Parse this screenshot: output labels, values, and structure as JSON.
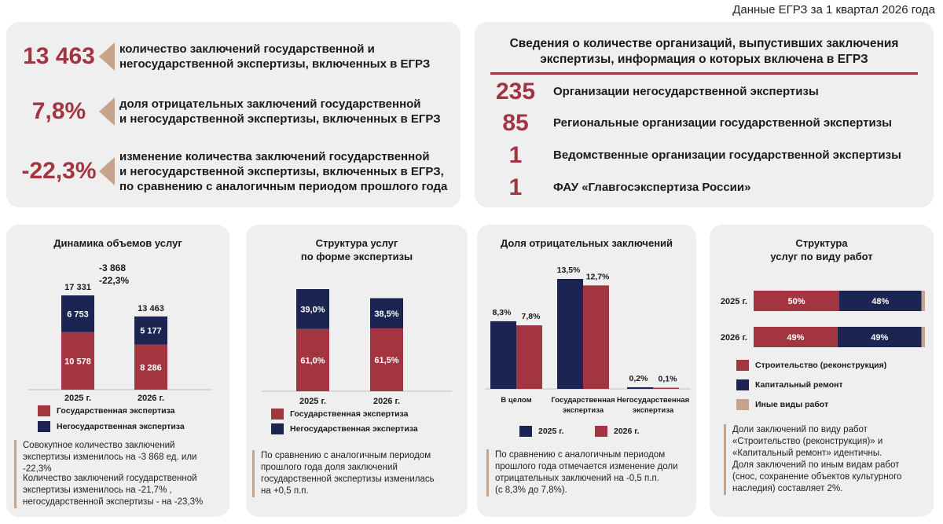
{
  "header": {
    "note": "Данные ЕГРЗ за 1 квартал 2026 года"
  },
  "colors": {
    "accent": "#a33540",
    "navy": "#1c2452",
    "tan": "#c6a48c",
    "panel": "#efefef"
  },
  "kpis": [
    {
      "value": "13 463",
      "text": "количество заключений государственной и\nнегосударственной экспертизы, включенных в ЕГРЗ"
    },
    {
      "value": "7,8%",
      "text": "доля отрицательных заключений государственной\nи негосударственной экспертизы, включенных в ЕГРЗ"
    },
    {
      "value": "-22,3%",
      "text": "изменение количества заключений государственной\nи негосударственной экспертизы, включенных в ЕГРЗ,\nпо сравнению с аналогичным периодом прошлого года"
    }
  ],
  "organizations": {
    "title": "Сведения о количестве организаций, выпустивших заключения\nэкспертизы, информация о которых включена в ЕГРЗ",
    "items": [
      {
        "count": "235",
        "label": "Организации негосударственной экспертизы"
      },
      {
        "count": "85",
        "label": "Региональные организации государственной экспертизы"
      },
      {
        "count": "1",
        "label": "Ведомственные организации государственной экспертизы"
      },
      {
        "count": "1",
        "label": "ФАУ «Главгосэкспертиза России»"
      }
    ]
  },
  "chart_data": [
    {
      "type": "bar",
      "stacked": true,
      "title": "Динамика объемов услуг",
      "categories": [
        "2025 г.",
        "2026 г."
      ],
      "series": [
        {
          "name": "Государственная экспертиза",
          "values": [
            10578,
            8286
          ],
          "labels": [
            "10 578",
            "8 286"
          ]
        },
        {
          "name": "Негосударственная экспертиза",
          "values": [
            6753,
            5177
          ],
          "labels": [
            "6 753",
            "5 177"
          ]
        }
      ],
      "totals": [
        "17 331",
        "13 463"
      ],
      "annotation": {
        "delta": "-3 868",
        "percent": "-22,3%"
      },
      "note1": "Совокупное количество заключений\nэкспертизы изменилось на -3 868 ед. или -22,3%",
      "note2": "Количество заключений государственной\nэкспертизы изменилось на -21,7% ,\nнегосударственной экспертизы - на -23,3%"
    },
    {
      "type": "bar",
      "stacked": true,
      "title": "Структура услуг\nпо форме экспертизы",
      "categories": [
        "2025 г.",
        "2026 г."
      ],
      "series": [
        {
          "name": "Государственная экспертиза",
          "values": [
            61.0,
            61.5
          ],
          "labels": [
            "61,0%",
            "61,5%"
          ]
        },
        {
          "name": "Негосударственная экспертиза",
          "values": [
            39.0,
            38.5
          ],
          "labels": [
            "39,0%",
            "38,5%"
          ]
        }
      ],
      "note": "По сравнению с аналогичным периодом\nпрошлого года доля заключений\nгосударственной экспертизы изменилась\nна +0,5 п.п."
    },
    {
      "type": "bar",
      "title": "Доля отрицательных заключений",
      "categories": [
        "В целом",
        "Государственная\nэкспертиза",
        "Негосударственная\nэкспертиза"
      ],
      "series": [
        {
          "name": "2025 г.",
          "values": [
            8.3,
            13.5,
            0.2
          ],
          "labels": [
            "8,3%",
            "13,5%",
            "0,2%"
          ]
        },
        {
          "name": "2026 г.",
          "values": [
            7.8,
            12.7,
            0.1
          ],
          "labels": [
            "7,8%",
            "12,7%",
            "0,1%"
          ]
        }
      ],
      "note": "По сравнению с аналогичным периодом\nпрошлого года отмечается изменение доли\nотрицательных заключений на -0,5 п.п.\n(с 8,3% до 7,8%)."
    },
    {
      "type": "bar",
      "orientation": "horizontal",
      "stacked": true,
      "title": "Структура\nуслуг по виду работ",
      "categories": [
        "2025 г.",
        "2026 г."
      ],
      "series": [
        {
          "name": "Строительство (реконструкция)",
          "values": [
            50,
            49
          ],
          "labels": [
            "50%",
            "49%"
          ]
        },
        {
          "name": "Капитальный ремонт",
          "values": [
            48,
            49
          ],
          "labels": [
            "48%",
            "49%"
          ]
        },
        {
          "name": "Иные виды работ",
          "values": [
            2,
            2
          ],
          "labels": [
            "",
            ""
          ]
        }
      ],
      "note": "Доли заключений по виду работ\n«Строительство (реконструкция)» и\n«Капитальный ремонт» идентичны.\nДоля заключений по иным видам работ\n(снос, сохранение объектов культурного\nнаследия) составляет 2%."
    }
  ]
}
